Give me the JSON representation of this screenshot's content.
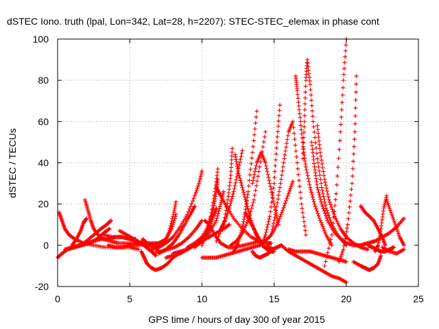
{
  "chart_data": {
    "type": "scatter",
    "title": "dSTEC Iono. truth (lpal, Lon=342, Lat=28, h=2207): STEC-STEC_elemax in phase cont",
    "xlabel": "GPS time / hours of day 300 of year 2015",
    "ylabel": "dSTEC  / TECUs",
    "xlim": [
      0,
      25
    ],
    "ylim": [
      -20,
      100
    ],
    "x_ticks": [
      0,
      5,
      10,
      15,
      20,
      25
    ],
    "y_ticks": [
      -20,
      0,
      20,
      40,
      60,
      80,
      100
    ],
    "x_tick_labels": [
      "0",
      "5",
      "10",
      "15",
      "20",
      "25"
    ],
    "y_tick_labels": [
      "-20",
      "0",
      "20",
      "40",
      "60",
      "80",
      "100"
    ],
    "grid": true,
    "marker": "+",
    "color": "#ff0000",
    "series": [
      {
        "x": [
          0.0,
          0.3,
          0.7,
          1.2,
          1.7,
          2.2,
          2.7,
          3.2,
          3.6
        ],
        "y": [
          -6,
          -4,
          -2,
          -1,
          0,
          1,
          3,
          6,
          8
        ]
      },
      {
        "x": [
          0.1,
          0.3,
          0.5,
          0.8,
          1.2,
          1.8,
          2.5,
          3.3,
          4.2,
          5.0,
          5.6
        ],
        "y": [
          16,
          12,
          8,
          5,
          3,
          1,
          0,
          -1,
          -1,
          -1,
          -2
        ]
      },
      {
        "x": [
          0.5,
          1.0,
          1.5,
          2.0,
          2.5,
          3.0,
          3.5,
          4.0,
          4.5,
          5.0,
          5.4
        ],
        "y": [
          -2,
          -1,
          0,
          1,
          2,
          3,
          3,
          4,
          4,
          3,
          3
        ]
      },
      {
        "x": [
          1.0,
          1.3,
          1.6,
          1.8,
          2.0
        ],
        "y": [
          0,
          3,
          7,
          11,
          13
        ]
      },
      {
        "x": [
          1.9,
          2.1,
          2.3,
          2.5,
          2.8,
          3.2,
          3.7,
          4.2,
          4.8,
          5.4,
          6.0
        ],
        "y": [
          22,
          17,
          12,
          8,
          5,
          3,
          2,
          1,
          1,
          1,
          2
        ]
      },
      {
        "x": [
          1.6,
          2.0,
          2.5,
          3.0,
          3.4,
          3.7
        ],
        "y": [
          0,
          2,
          5,
          8,
          10,
          12
        ]
      },
      {
        "x": [
          3.2,
          3.8,
          4.4,
          5.0,
          5.5,
          6.0,
          6.3
        ],
        "y": [
          5,
          4,
          4,
          3,
          2,
          0,
          -2
        ]
      },
      {
        "x": [
          3.5,
          4.0,
          4.5,
          5.0,
          5.5,
          6.0,
          6.5,
          7.0,
          7.5
        ],
        "y": [
          0,
          -1,
          -1,
          0,
          0,
          1,
          1,
          1,
          2
        ]
      },
      {
        "x": [
          4.3,
          4.8,
          5.3,
          5.8,
          6.2,
          6.5,
          6.8
        ],
        "y": [
          7,
          5,
          3,
          1,
          -1,
          -3,
          -5
        ]
      },
      {
        "x": [
          5.5,
          6.0,
          6.5,
          7.0,
          7.5,
          7.9,
          8.2
        ],
        "y": [
          1,
          0,
          0,
          1,
          3,
          8,
          15
        ]
      },
      {
        "x": [
          5.8,
          6.0,
          6.2,
          6.5,
          6.8,
          7.2,
          7.6,
          8.0,
          8.4
        ],
        "y": [
          -3,
          -6,
          -9,
          -11,
          -12,
          -11,
          -9,
          -6,
          -4
        ]
      },
      {
        "x": [
          5.9,
          6.2,
          6.6,
          7.0,
          7.4,
          7.7,
          8.0,
          8.2
        ],
        "y": [
          3,
          1,
          -1,
          -1,
          1,
          6,
          14,
          21
        ]
      },
      {
        "x": [
          6.5,
          7.0,
          7.5,
          8.0,
          8.5,
          9.0,
          9.5,
          9.8,
          10.0
        ],
        "y": [
          -2,
          -1,
          1,
          4,
          9,
          15,
          24,
          30,
          36
        ]
      },
      {
        "x": [
          6.8,
          7.2,
          7.6,
          8.1,
          8.6,
          9.1,
          9.6,
          10.0
        ],
        "y": [
          -3,
          -3,
          -2,
          -1,
          1,
          4,
          8,
          12
        ]
      },
      {
        "x": [
          7.5,
          8.0,
          8.5,
          9.0,
          9.5,
          10.0,
          10.5,
          11.0,
          11.5,
          11.9
        ],
        "y": [
          -6,
          -5,
          -4,
          -2,
          0,
          2,
          4,
          6,
          8,
          10
        ]
      },
      {
        "x": [
          7.0,
          7.5,
          8.0,
          8.4,
          8.8,
          9.2,
          9.5
        ],
        "y": [
          -4,
          -2,
          1,
          5,
          10,
          15,
          19
        ]
      },
      {
        "x": [
          8.0,
          8.5,
          9.0,
          9.5,
          10.0,
          10.5,
          10.8,
          11.0
        ],
        "y": [
          -4,
          -3,
          -2,
          0,
          3,
          8,
          14,
          18
        ]
      },
      {
        "x": [
          9.0,
          9.5,
          10.0,
          10.5,
          10.8,
          11.0,
          11.1
        ],
        "y": [
          -1,
          1,
          4,
          10,
          18,
          26,
          32
        ]
      },
      {
        "x": [
          9.5,
          10.0,
          10.5,
          11.0,
          11.3,
          11.5
        ],
        "y": [
          -1,
          2,
          6,
          12,
          20,
          26
        ]
      },
      {
        "x": [
          10.0,
          10.3,
          10.6,
          10.9,
          11.1
        ],
        "y": [
          0,
          6,
          14,
          26,
          37
        ]
      },
      {
        "x": [
          10.0,
          10.5,
          11.0,
          11.5,
          12.0,
          12.5,
          13.0,
          13.5,
          14.0
        ],
        "y": [
          -6,
          -6,
          -6,
          -5,
          -4,
          -3,
          -2,
          -1,
          0
        ]
      },
      {
        "x": [
          10.2,
          10.5,
          10.9,
          11.3,
          11.8,
          12.3,
          12.9,
          13.5,
          14.0
        ],
        "y": [
          12,
          10,
          5,
          1,
          -1,
          -1,
          0,
          1,
          2
        ]
      },
      {
        "x": [
          11.0,
          11.3,
          11.7,
          12.2,
          12.8,
          13.4,
          14.0,
          14.5,
          14.8
        ],
        "y": [
          28,
          24,
          19,
          13,
          8,
          4,
          2,
          1,
          1
        ]
      },
      {
        "x": [
          11.0,
          11.5,
          11.8,
          12.0,
          12.1
        ],
        "y": [
          2,
          10,
          22,
          34,
          47
        ]
      },
      {
        "x": [
          11.3,
          11.6,
          11.9,
          12.2,
          12.5,
          12.8
        ],
        "y": [
          8,
          12,
          18,
          26,
          36,
          46
        ]
      },
      {
        "x": [
          12.2,
          12.5,
          12.8,
          13.0,
          13.2,
          13.5,
          13.8
        ],
        "y": [
          -3,
          1,
          8,
          16,
          26,
          45,
          65
        ]
      },
      {
        "x": [
          12.0,
          12.4,
          12.8,
          13.2,
          13.6,
          14.0,
          14.4
        ],
        "y": [
          0,
          2,
          6,
          12,
          22,
          38,
          55
        ]
      },
      {
        "x": [
          12.3,
          12.5,
          12.8,
          13.1,
          13.4,
          13.7,
          14.0,
          14.3,
          14.6,
          15.0
        ],
        "y": [
          44,
          36,
          28,
          20,
          12,
          6,
          2,
          -1,
          -1,
          -2
        ]
      },
      {
        "x": [
          13.0,
          13.3,
          13.6,
          13.9,
          14.2,
          14.5,
          14.8,
          15.0
        ],
        "y": [
          16,
          12,
          8,
          4,
          0,
          -2,
          -3,
          -3
        ]
      },
      {
        "x": [
          13.5,
          13.7,
          14.0,
          14.3,
          14.6,
          14.9,
          15.2,
          15.5
        ],
        "y": [
          -3,
          -5,
          -6,
          -5,
          -4,
          -2,
          -1,
          0
        ]
      },
      {
        "x": [
          13.5,
          13.8,
          14.1,
          14.4,
          14.7,
          15.0,
          15.3
        ],
        "y": [
          30,
          40,
          45,
          40,
          30,
          20,
          10
        ]
      },
      {
        "x": [
          14.2,
          14.4,
          14.7,
          15.0,
          15.2,
          15.4
        ],
        "y": [
          0,
          5,
          14,
          30,
          50,
          68
        ]
      },
      {
        "x": [
          14.0,
          14.4,
          14.8,
          15.2,
          15.6,
          16.0,
          16.3
        ],
        "y": [
          0,
          2,
          5,
          10,
          17,
          25,
          31
        ]
      },
      {
        "x": [
          14.8,
          15.1,
          15.4,
          15.7,
          16.0,
          16.3,
          16.6,
          16.9,
          17.2
        ],
        "y": [
          5,
          15,
          28,
          42,
          55,
          60,
          40,
          20,
          5
        ]
      },
      {
        "x": [
          15.5,
          16.0,
          16.5,
          17.0,
          17.5,
          18.0,
          18.5,
          19.0,
          19.5,
          20.0
        ],
        "y": [
          0,
          -3,
          -5,
          -7,
          -9,
          -11,
          -13,
          -15,
          -16,
          -18
        ]
      },
      {
        "x": [
          16.0,
          16.5,
          17.0,
          17.5,
          18.0,
          18.5,
          19.0,
          19.5,
          20.0
        ],
        "y": [
          -2,
          -3,
          -3,
          -3,
          -4,
          -5,
          -6,
          -7,
          -8
        ]
      },
      {
        "x": [
          16.5,
          16.6,
          16.8,
          17.0,
          17.2,
          17.5,
          17.8,
          18.2,
          18.6,
          19.0
        ],
        "y": [
          82,
          75,
          62,
          48,
          38,
          28,
          20,
          12,
          5,
          0
        ]
      },
      {
        "x": [
          17.0,
          17.1,
          17.2,
          17.3,
          17.5,
          17.7,
          18.0,
          18.3,
          18.6,
          19.0,
          19.5,
          20.0
        ],
        "y": [
          42,
          60,
          80,
          90,
          78,
          60,
          42,
          28,
          18,
          10,
          4,
          0
        ]
      },
      {
        "x": [
          17.6,
          17.8,
          18.0,
          18.3,
          18.7,
          19.2,
          19.8,
          20.4,
          21.0,
          21.5,
          22.0
        ],
        "y": [
          50,
          38,
          28,
          20,
          12,
          6,
          2,
          0,
          0,
          1,
          2
        ]
      },
      {
        "x": [
          18.0,
          18.2,
          18.5,
          18.8,
          19.2,
          19.6,
          20.0,
          20.5,
          21.0,
          21.5
        ],
        "y": [
          58,
          45,
          32,
          22,
          14,
          8,
          4,
          1,
          -1,
          -2
        ]
      },
      {
        "x": [
          18.5,
          19.0,
          19.3,
          19.6,
          19.8,
          20.0
        ],
        "y": [
          -10,
          5,
          25,
          55,
          80,
          100
        ]
      },
      {
        "x": [
          19.5,
          19.8,
          20.1,
          20.4,
          20.6,
          20.7
        ],
        "y": [
          -8,
          -2,
          10,
          30,
          55,
          82
        ]
      },
      {
        "x": [
          20.5,
          21.0,
          21.3,
          21.6,
          21.9,
          22.2,
          22.4
        ],
        "y": [
          -8,
          -10,
          -11,
          -12,
          -11,
          -9,
          -5
        ]
      },
      {
        "x": [
          20.5,
          21.0,
          21.5,
          22.0,
          22.5,
          23.0,
          23.5,
          24.0
        ],
        "y": [
          0,
          0,
          1,
          2,
          4,
          6,
          9,
          13
        ]
      },
      {
        "x": [
          21.0,
          21.3,
          21.6,
          21.9,
          22.2,
          22.5,
          22.7
        ],
        "y": [
          19,
          16,
          14,
          12,
          8,
          4,
          0
        ]
      },
      {
        "x": [
          21.5,
          21.8,
          22.1,
          22.4,
          22.7,
          23.0,
          23.3
        ],
        "y": [
          0,
          -1,
          -2,
          -3,
          -3,
          -2,
          -1
        ]
      },
      {
        "x": [
          22.0,
          22.2,
          22.4,
          22.6,
          22.8
        ],
        "y": [
          -3,
          0,
          8,
          18,
          24
        ]
      },
      {
        "x": [
          22.8,
          23.1,
          23.4,
          23.7,
          24.0
        ],
        "y": [
          22,
          16,
          10,
          4,
          0
        ]
      },
      {
        "x": [
          22.5,
          23.0,
          23.5,
          24.0
        ],
        "y": [
          -1,
          -3,
          -4,
          -2
        ]
      }
    ]
  }
}
